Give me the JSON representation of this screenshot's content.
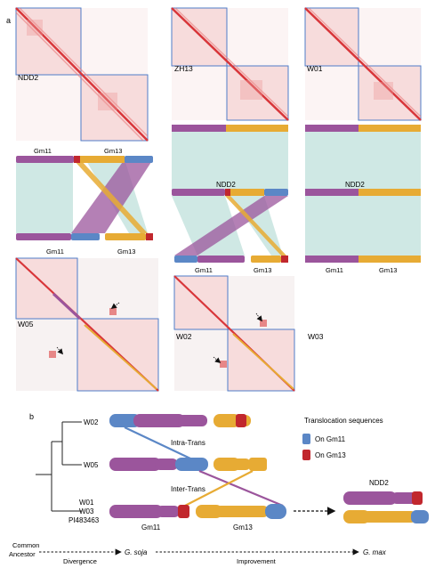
{
  "panel_a": {
    "letter": "a",
    "samples": {
      "ndd2_a": "NDD2",
      "zh13": "ZH13",
      "w01": "W01",
      "w05": "W05",
      "w02": "W02",
      "w03": "W03"
    },
    "chrom_gm11": "Gm11",
    "chrom_gm13": "Gm13",
    "ndd2_mid": "NDD2"
  },
  "panel_b": {
    "letter": "b",
    "tree_labels": {
      "w02": "W02",
      "w05": "W05",
      "w01": "W01",
      "w03": "W03",
      "pi": "PI483463"
    },
    "intra": "Intra-Trans",
    "inter": "Inter-Trans",
    "ndd2": "NDD2",
    "gm11": "Gm11",
    "gm13": "Gm13",
    "legend": {
      "title": "Translocation sequences",
      "on_gm11": "On Gm11",
      "on_gm13": "On Gm13"
    },
    "timeline": {
      "common": "Common",
      "ancestor": "Ancestor",
      "gsoja": "G. soja",
      "gmax": "G. max",
      "divergence": "Divergence",
      "improvement": "Improvement"
    }
  },
  "colors": {
    "purple": "#9b559c",
    "orange": "#e7ab34",
    "blue": "#5b87c6",
    "red": "#c1272d",
    "teal": "#cfe8e4",
    "box": "#4f7cc9"
  }
}
